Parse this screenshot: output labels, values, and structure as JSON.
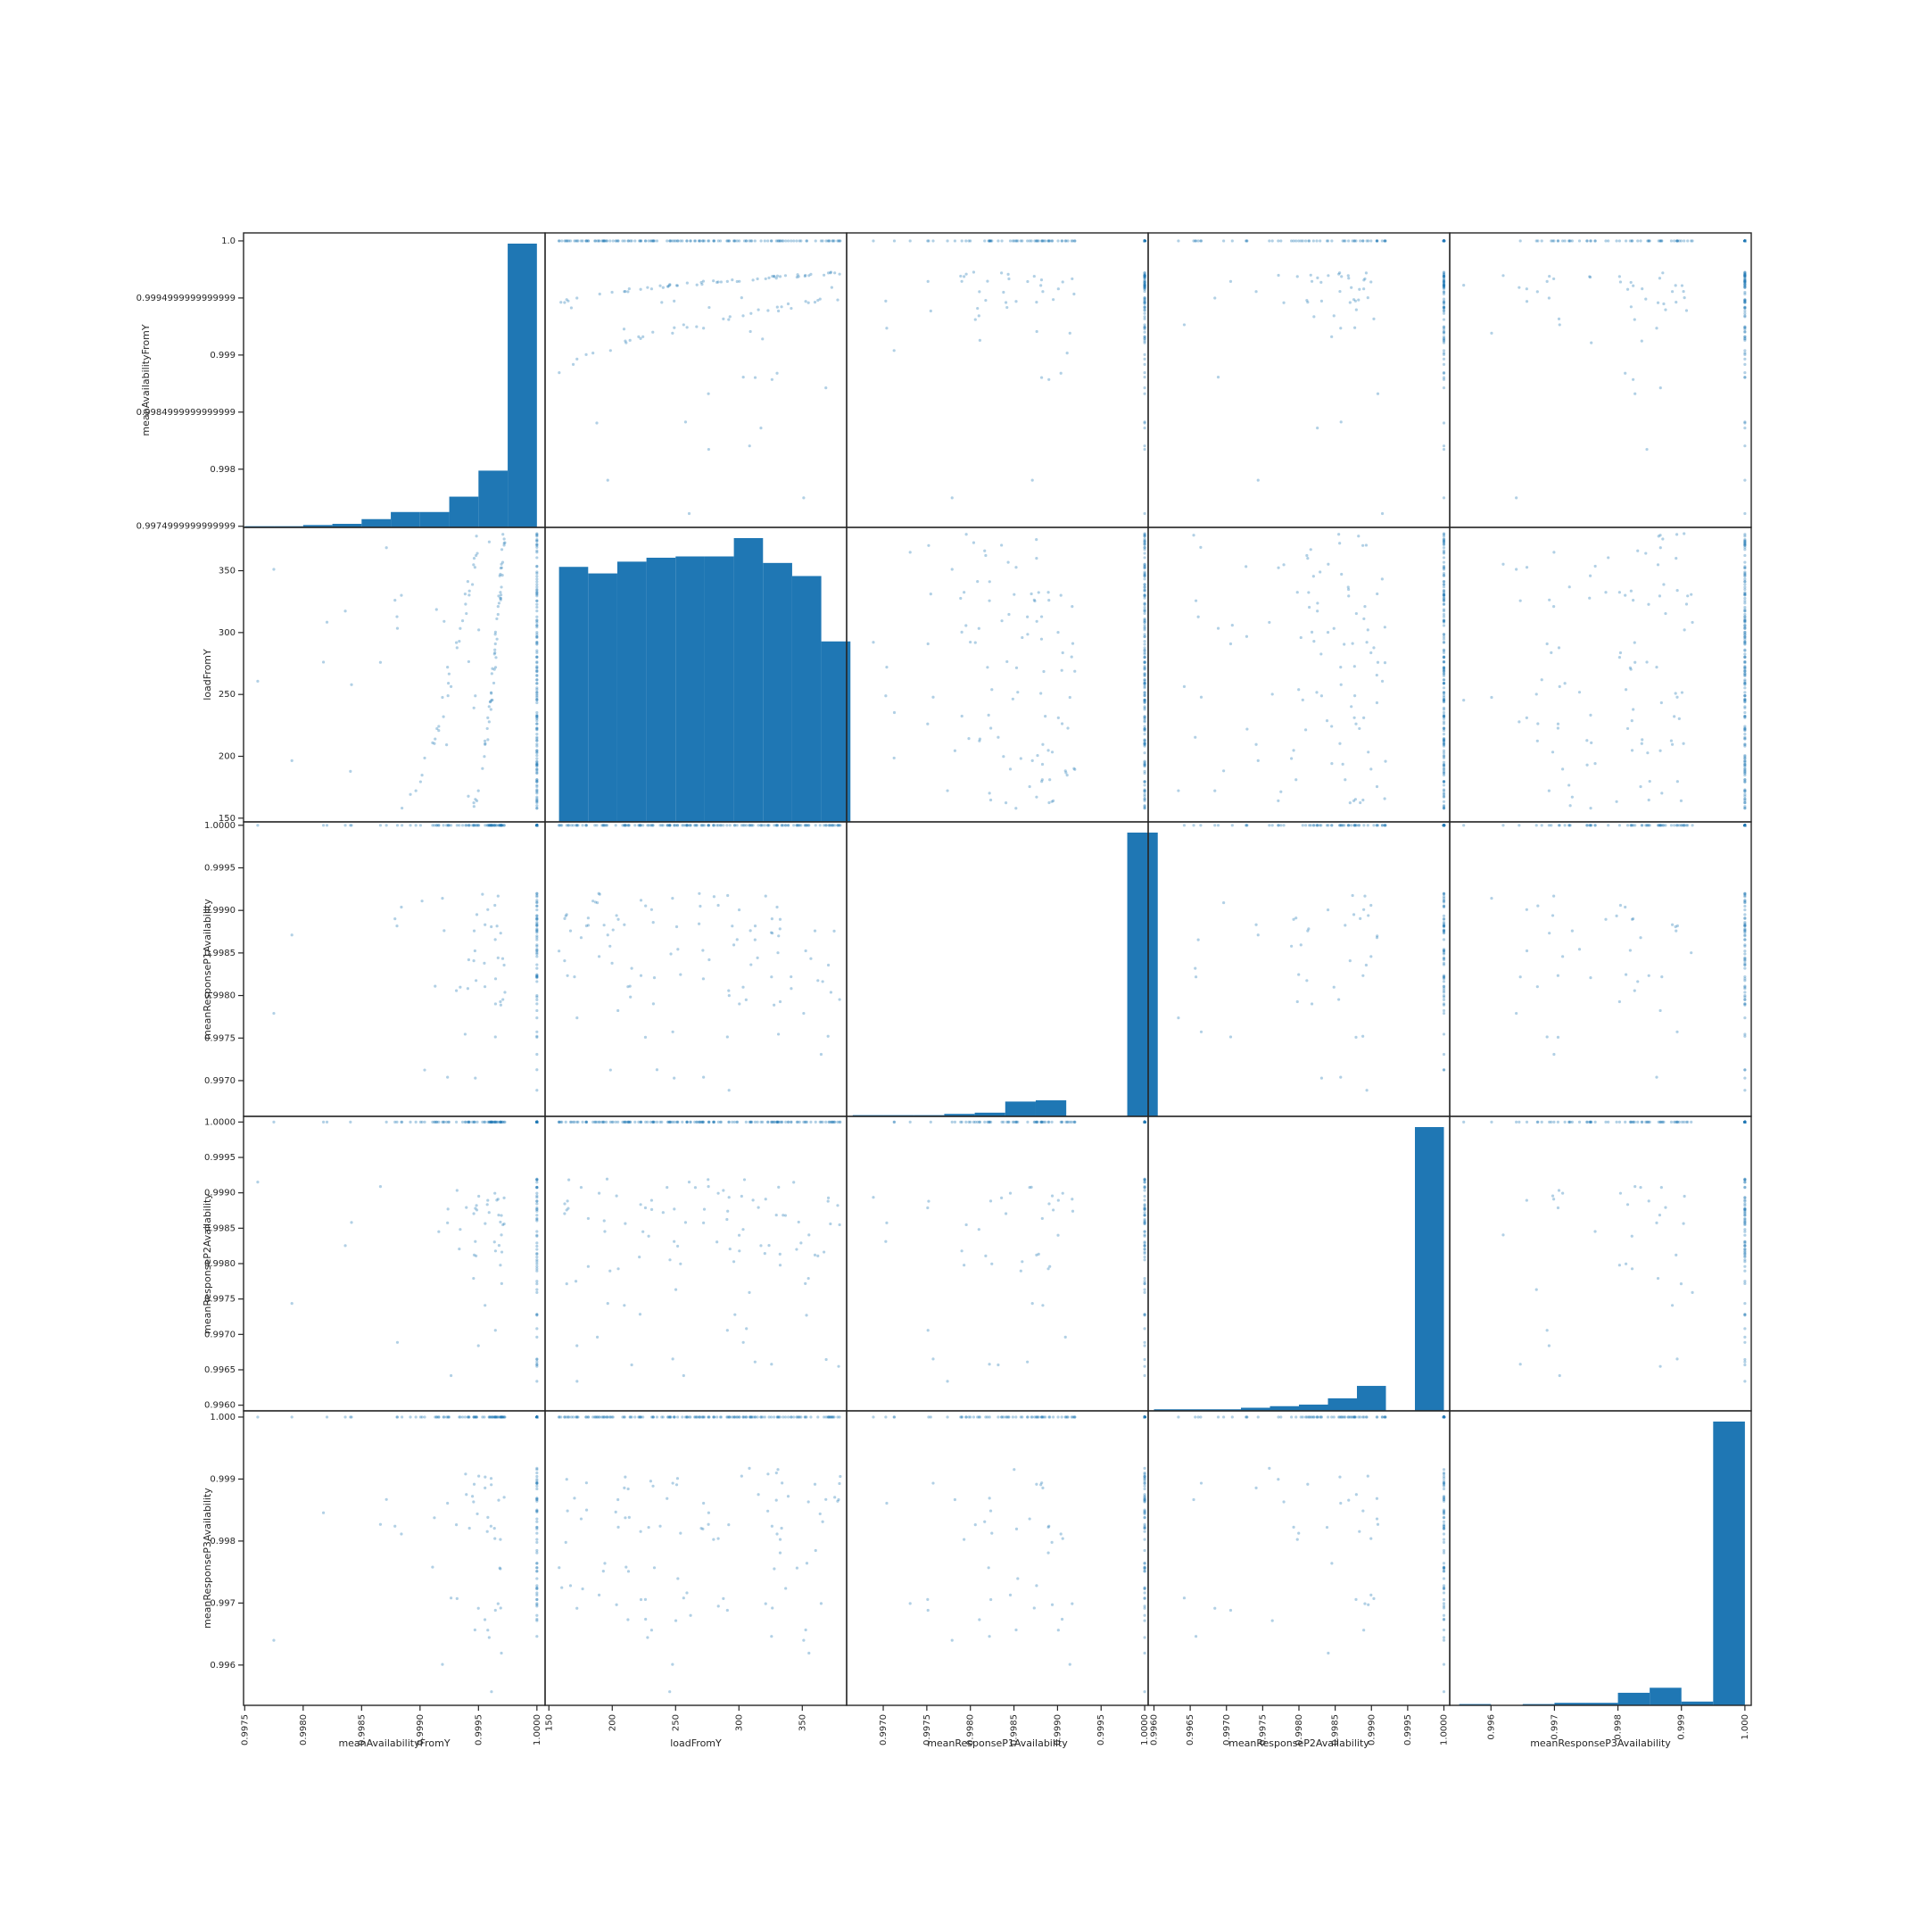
{
  "chart_data": {
    "type": "scatter",
    "title": "",
    "variables": [
      "meanAvailabilityFromY",
      "loadFromY",
      "meanResponseP1Availability",
      "meanResponseP2Availability",
      "meanResponseP3Availability"
    ],
    "axes": [
      {
        "name": "meanAvailabilityFromY",
        "range": [
          0.99749,
          1.00007
        ],
        "ticks": [
          {
            "v": 0.9975,
            "label": "0.9975"
          },
          {
            "v": 0.998,
            "label": "0.9980"
          },
          {
            "v": 0.9985,
            "label": "0.9985"
          },
          {
            "v": 0.999,
            "label": "0.9990"
          },
          {
            "v": 0.9995,
            "label": "0.9995"
          },
          {
            "v": 1.0,
            "label": "1.0000"
          }
        ],
        "row_ticks": [
          {
            "v": 0.9975,
            "label": "0.9974999999999999"
          },
          {
            "v": 0.998,
            "label": "0.998"
          },
          {
            "v": 0.9985,
            "label": "0.9984999999999999"
          },
          {
            "v": 0.999,
            "label": "0.999"
          },
          {
            "v": 0.9995,
            "label": "0.9994999999999999"
          },
          {
            "v": 1.0,
            "label": "1.0"
          }
        ]
      },
      {
        "name": "loadFromY",
        "range": [
          147,
          385
        ],
        "ticks": [
          {
            "v": 150,
            "label": "150"
          },
          {
            "v": 200,
            "label": "200"
          },
          {
            "v": 250,
            "label": "250"
          },
          {
            "v": 300,
            "label": "300"
          },
          {
            "v": 350,
            "label": "350"
          }
        ]
      },
      {
        "name": "meanResponseP1Availability",
        "range": [
          0.99658,
          1.00004
        ],
        "ticks": [
          {
            "v": 0.997,
            "label": "0.9970"
          },
          {
            "v": 0.9975,
            "label": "0.9975"
          },
          {
            "v": 0.998,
            "label": "0.9980"
          },
          {
            "v": 0.9985,
            "label": "0.9985"
          },
          {
            "v": 0.999,
            "label": "0.9990"
          },
          {
            "v": 0.9995,
            "label": "0.9995"
          },
          {
            "v": 1.0,
            "label": "1.0000"
          }
        ]
      },
      {
        "name": "meanResponseP2Availability",
        "range": [
          0.99592,
          1.00008
        ],
        "ticks": [
          {
            "v": 0.996,
            "label": "0.9960"
          },
          {
            "v": 0.9965,
            "label": "0.9965"
          },
          {
            "v": 0.997,
            "label": "0.9970"
          },
          {
            "v": 0.9975,
            "label": "0.9975"
          },
          {
            "v": 0.998,
            "label": "0.9980"
          },
          {
            "v": 0.9985,
            "label": "0.9985"
          },
          {
            "v": 0.999,
            "label": "0.9990"
          },
          {
            "v": 0.9995,
            "label": "0.9995"
          },
          {
            "v": 1.0,
            "label": "1.0000"
          }
        ]
      },
      {
        "name": "meanResponseP3Availability",
        "range": [
          0.99535,
          1.0001
        ],
        "ticks": [
          {
            "v": 0.996,
            "label": "0.996"
          },
          {
            "v": 0.997,
            "label": "0.997"
          },
          {
            "v": 0.998,
            "label": "0.998"
          },
          {
            "v": 0.999,
            "label": "0.999"
          },
          {
            "v": 1.0,
            "label": "1.000"
          }
        ]
      }
    ],
    "histograms": [
      {
        "variable": "meanAvailabilityFromY",
        "edges": [
          0.9975,
          0.99775,
          0.998,
          0.99825,
          0.9985,
          0.99875,
          0.999,
          0.99925,
          0.9995,
          0.99975,
          1.0
        ],
        "counts": [
          1,
          1,
          2,
          3,
          7,
          13,
          13,
          26,
          48,
          240
        ]
      },
      {
        "variable": "loadFromY",
        "edges": [
          158,
          181,
          204,
          227,
          250,
          273,
          296,
          319,
          342,
          365,
          388
        ],
        "counts": [
          195,
          190,
          199,
          202,
          203,
          203,
          217,
          198,
          188,
          138
        ]
      },
      {
        "variable": "meanResponseP1Availability",
        "edges": [
          0.99665,
          0.997,
          0.99735,
          0.9977,
          0.99805,
          0.9984,
          0.99875,
          0.9991,
          0.99945,
          0.9998,
          1.00015
        ],
        "counts": [
          1,
          1,
          1,
          2,
          3,
          12,
          13,
          0,
          0,
          230
        ]
      },
      {
        "variable": "meanResponseP2Availability",
        "edges": [
          0.996,
          0.9964,
          0.9968,
          0.9972,
          0.9976,
          0.998,
          0.9984,
          0.9988,
          0.9992,
          0.9996,
          1.0
        ],
        "counts": [
          1,
          1,
          1,
          2,
          3,
          4,
          8,
          16,
          0,
          182
        ]
      },
      {
        "variable": "meanResponseP3Availability",
        "edges": [
          0.9955,
          0.996,
          0.9965,
          0.997,
          0.9975,
          0.998,
          0.9985,
          0.999,
          0.9995,
          1.0
        ],
        "counts": [
          1,
          0,
          1,
          2,
          2,
          10,
          14,
          3,
          226
        ]
      }
    ],
    "grid": false,
    "legend": "none"
  }
}
